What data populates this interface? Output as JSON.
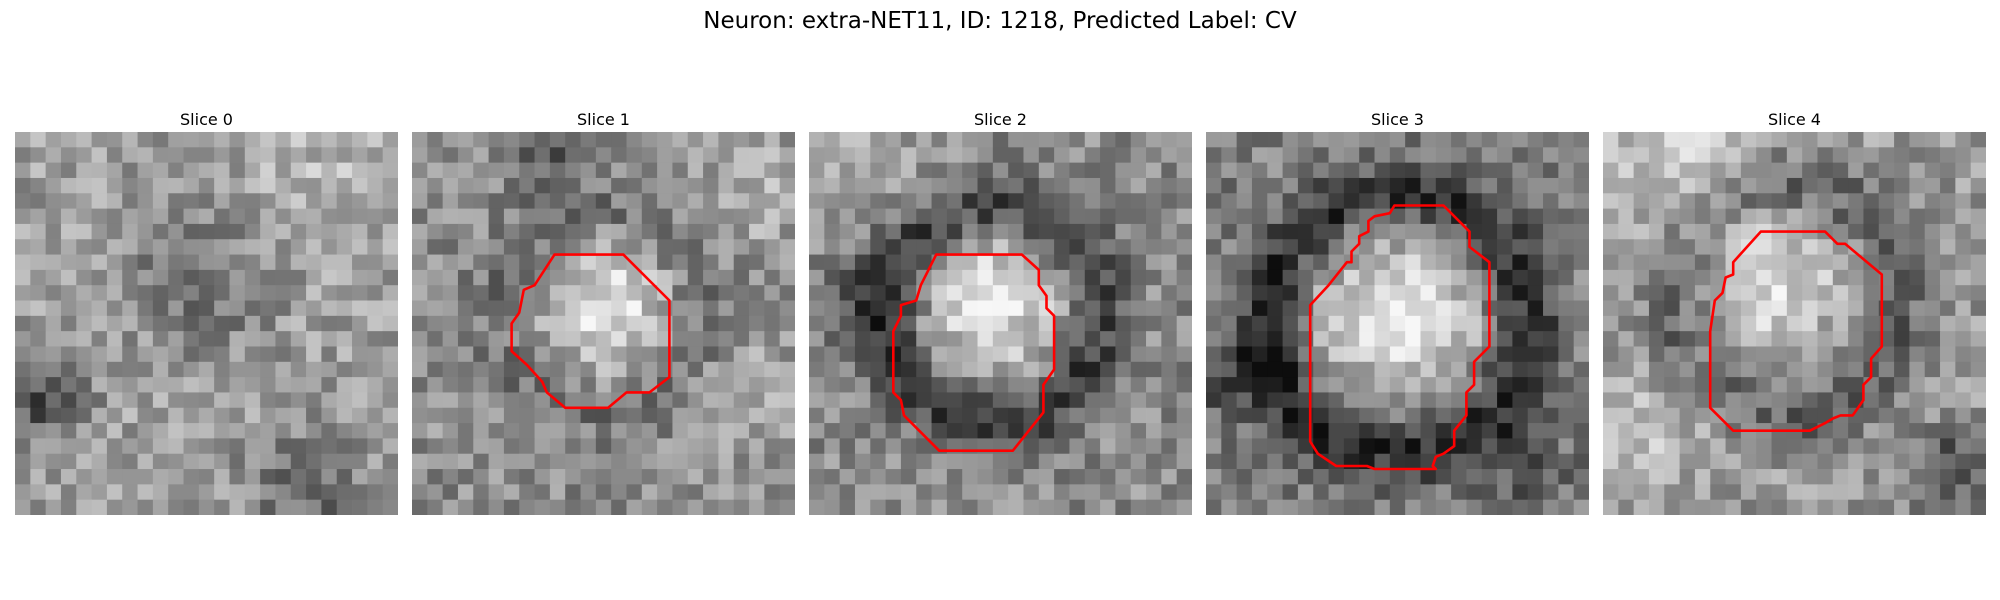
{
  "figure": {
    "title": "Neuron: extra-NET11, ID: 1218, Predicted Label: CV"
  },
  "panels": [
    {
      "label": "Slice 0",
      "has_contour": false
    },
    {
      "label": "Slice 1",
      "has_contour": true
    },
    {
      "label": "Slice 2",
      "has_contour": true
    },
    {
      "label": "Slice 3",
      "has_contour": true
    },
    {
      "label": "Slice 4",
      "has_contour": true
    }
  ],
  "style": {
    "colormap": "grayscale",
    "contour_color": "#ff0000"
  }
}
